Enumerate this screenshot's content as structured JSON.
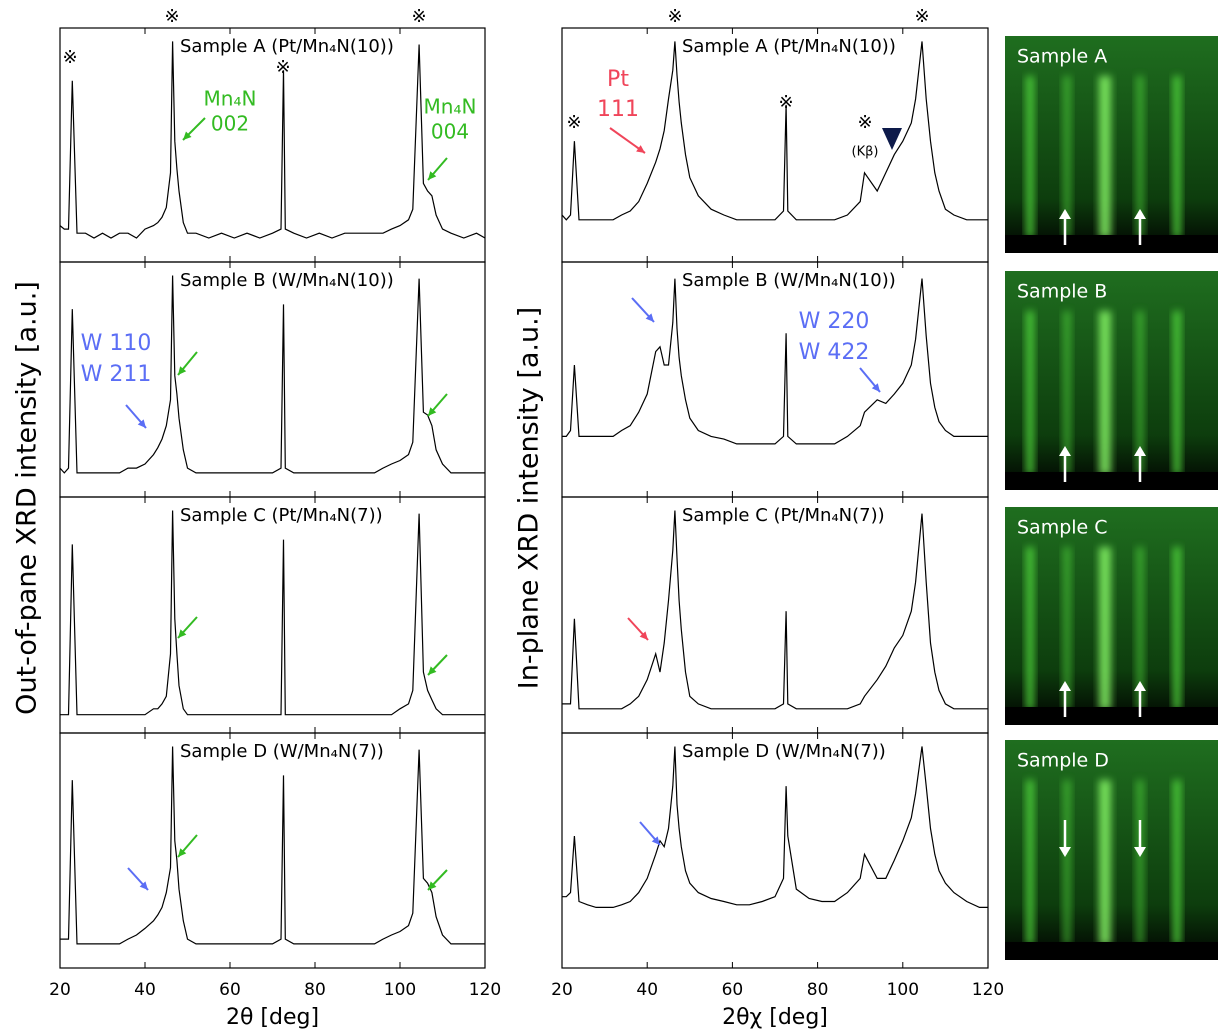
{
  "chart_data": [
    {
      "type": "line",
      "title": "Sample A (Pt/Mn₄N(10))",
      "ylabel": "Out-of-pane XRD intensity [a.u.]",
      "log_y": true,
      "color": "#000000",
      "xlim": [
        20,
        120
      ],
      "xticks": [
        20,
        40,
        60,
        80,
        100,
        120
      ],
      "ylim": [
        2,
        15000
      ],
      "x": [
        20,
        21,
        22,
        22.9,
        24,
        26,
        28,
        30,
        32,
        34,
        36,
        38,
        40,
        42,
        43,
        44,
        45,
        46,
        46.5,
        47,
        47.5,
        48,
        49,
        50,
        52,
        55,
        58,
        61,
        64,
        67,
        70,
        72,
        72.6,
        73,
        75,
        78,
        81,
        84,
        87,
        90,
        91,
        94,
        96,
        98,
        100,
        102,
        103,
        104.5,
        105.5,
        106.5,
        107.5,
        108.5,
        110,
        112,
        115,
        118,
        120
      ],
      "values": [
        8,
        7,
        7,
        2000,
        6,
        6,
        5,
        6,
        5,
        6,
        6,
        5,
        7,
        8,
        9,
        11,
        16,
        60,
        9000,
        200,
        70,
        30,
        9,
        6,
        6,
        5,
        6,
        5,
        6,
        5,
        6,
        7,
        3000,
        7,
        6,
        5,
        6,
        5,
        6,
        6,
        6,
        6,
        6,
        7,
        8,
        10,
        15,
        8000,
        40,
        30,
        25,
        12,
        7,
        6,
        5,
        6,
        5
      ],
      "annotations": [
        {
          "text": "※",
          "color": "#000000"
        },
        {
          "text": "※",
          "color": "#000000"
        },
        {
          "text": "※",
          "color": "#000000"
        },
        {
          "text": "※",
          "color": "#000000"
        },
        {
          "text": "Mn₄N",
          "color": "#33bb22"
        },
        {
          "text": "002",
          "color": "#33bb22"
        },
        {
          "text": "Mn₄N",
          "color": "#33bb22"
        },
        {
          "text": "004",
          "color": "#33bb22"
        }
      ]
    },
    {
      "type": "line",
      "title": "Sample B (W/Mn₄N(10))",
      "log_y": true,
      "color": "#000000",
      "xlim": [
        20,
        120
      ],
      "xticks": [
        20,
        40,
        60,
        80,
        100,
        120
      ],
      "ylim": [
        2,
        15000
      ],
      "x": [
        20,
        21,
        22,
        22.9,
        24,
        26,
        28,
        30,
        32,
        34,
        36,
        38,
        40,
        42,
        43,
        44,
        45,
        46,
        46.5,
        47,
        47.5,
        48,
        49,
        50,
        52,
        55,
        58,
        61,
        64,
        67,
        70,
        72,
        72.6,
        73,
        75,
        78,
        81,
        84,
        87,
        90,
        91,
        94,
        96,
        98,
        100,
        102,
        103,
        104.5,
        105.5,
        106.5,
        107.5,
        108.5,
        110,
        112,
        115,
        118,
        120
      ],
      "values": [
        6,
        5,
        6,
        2500,
        5,
        5,
        5,
        5,
        5,
        5,
        6,
        6,
        7,
        10,
        13,
        18,
        30,
        80,
        9000,
        200,
        100,
        40,
        12,
        6,
        5,
        5,
        5,
        5,
        5,
        5,
        5,
        6,
        3000,
        6,
        5,
        5,
        5,
        5,
        5,
        5,
        5,
        5,
        6,
        7,
        8,
        10,
        16,
        8000,
        50,
        45,
        30,
        12,
        7,
        5,
        5,
        5,
        5
      ],
      "annotations": [
        {
          "text": "W 110",
          "color": "#5b6ef5"
        },
        {
          "text": "W 211",
          "color": "#5b6ef5"
        }
      ]
    },
    {
      "type": "line",
      "title": "Sample C (Pt/Mn₄N(7))",
      "log_y": true,
      "color": "#000000",
      "xlim": [
        20,
        120
      ],
      "xticks": [
        20,
        40,
        60,
        80,
        100,
        120
      ],
      "ylim": [
        2,
        15000
      ],
      "x": [
        20,
        21,
        22,
        22.9,
        24,
        26,
        28,
        30,
        32,
        34,
        36,
        38,
        40,
        42,
        43,
        44,
        45,
        46,
        46.5,
        47,
        47.5,
        48,
        49,
        50,
        52,
        55,
        58,
        61,
        64,
        67,
        70,
        72,
        72.6,
        73,
        75,
        78,
        81,
        84,
        87,
        90,
        91,
        94,
        96,
        98,
        100,
        102,
        103,
        104.5,
        105.5,
        106.5,
        107.5,
        108.5,
        110,
        112,
        115,
        118,
        120
      ],
      "values": [
        4,
        4,
        4,
        2500,
        4,
        4,
        4,
        4,
        4,
        4,
        4,
        4,
        4,
        5,
        5,
        6,
        8,
        40,
        9000,
        150,
        40,
        12,
        5,
        4,
        4,
        4,
        4,
        4,
        4,
        4,
        4,
        4,
        3000,
        4,
        4,
        4,
        4,
        4,
        4,
        4,
        4,
        4,
        4,
        4,
        5,
        6,
        10,
        8000,
        20,
        10,
        7,
        5,
        4,
        4,
        4,
        4,
        4
      ],
      "annotations": []
    },
    {
      "type": "line",
      "title": "Sample D (W/Mn₄N(7))",
      "xlabel": "2θ [deg]",
      "log_y": true,
      "color": "#000000",
      "xlim": [
        20,
        120
      ],
      "xticks": [
        20,
        40,
        60,
        80,
        100,
        120
      ],
      "ylim": [
        2,
        15000
      ],
      "x": [
        20,
        21,
        22,
        22.9,
        24,
        26,
        28,
        30,
        32,
        34,
        36,
        38,
        40,
        42,
        43,
        44,
        45,
        46,
        46.5,
        47,
        47.5,
        48,
        49,
        50,
        52,
        55,
        58,
        61,
        64,
        67,
        70,
        72,
        72.6,
        73,
        75,
        78,
        81,
        84,
        87,
        90,
        91,
        94,
        96,
        98,
        100,
        102,
        103,
        104.5,
        105.5,
        106.5,
        107.5,
        108.5,
        110,
        112,
        115,
        118,
        120
      ],
      "values": [
        6,
        6,
        6,
        2500,
        5,
        5,
        5,
        5,
        5,
        5,
        6,
        7,
        9,
        12,
        15,
        20,
        35,
        90,
        9000,
        250,
        120,
        40,
        12,
        6,
        5,
        5,
        5,
        5,
        5,
        5,
        5,
        6,
        3000,
        6,
        5,
        5,
        5,
        5,
        5,
        5,
        5,
        5,
        6,
        7,
        8,
        10,
        16,
        8000,
        60,
        50,
        35,
        14,
        7,
        5,
        5,
        5,
        5
      ],
      "annotations": []
    },
    {
      "type": "line",
      "title": "Sample A (Pt/Mn₄N(10))",
      "ylabel": "In-plane XRD intensity [a.u.]",
      "log_y": true,
      "color": "#000000",
      "xlim": [
        20,
        120
      ],
      "xticks": [
        20,
        40,
        60,
        80,
        100,
        120
      ],
      "ylim": [
        2,
        15000
      ],
      "x": [
        20,
        21,
        22,
        22.9,
        24,
        26,
        28,
        30,
        32,
        34,
        36,
        38,
        40,
        42,
        43,
        44,
        45,
        46,
        46.5,
        47,
        47.5,
        48,
        49,
        50,
        52,
        55,
        58,
        61,
        64,
        67,
        70,
        72,
        72.6,
        73,
        75,
        78,
        81,
        84,
        87,
        90,
        91,
        94,
        96,
        98,
        100,
        102,
        103,
        104.5,
        105.5,
        106.5,
        107.5,
        108.5,
        110,
        112,
        115,
        118,
        120
      ],
      "values": [
        12,
        10,
        12,
        200,
        10,
        10,
        10,
        10,
        10,
        12,
        14,
        20,
        40,
        90,
        150,
        300,
        1000,
        3000,
        9000,
        2500,
        900,
        400,
        120,
        50,
        25,
        15,
        12,
        10,
        10,
        10,
        10,
        14,
        800,
        14,
        10,
        10,
        10,
        10,
        12,
        20,
        60,
        30,
        60,
        120,
        200,
        400,
        1000,
        9000,
        1000,
        200,
        60,
        30,
        15,
        12,
        10,
        10,
        10
      ],
      "annotations": [
        {
          "text": "※",
          "color": "#000000"
        },
        {
          "text": "※",
          "color": "#000000"
        },
        {
          "text": "※",
          "color": "#000000"
        },
        {
          "text": "※",
          "color": "#000000"
        },
        {
          "text": "※",
          "color": "#000000"
        },
        {
          "text": "(Kβ)",
          "color": "#000000"
        },
        {
          "text": "Pt",
          "color": "#f0455a"
        },
        {
          "text": "111",
          "color": "#f0455a"
        }
      ]
    },
    {
      "type": "line",
      "title": "Sample B (W/Mn₄N(10))",
      "log_y": true,
      "color": "#000000",
      "xlim": [
        20,
        120
      ],
      "xticks": [
        20,
        40,
        60,
        80,
        100,
        120
      ],
      "ylim": [
        2,
        15000
      ],
      "x": [
        20,
        21,
        22,
        22.9,
        24,
        26,
        28,
        30,
        32,
        34,
        36,
        38,
        40,
        42,
        43,
        44,
        45,
        46,
        46.5,
        47,
        47.5,
        48,
        49,
        50,
        52,
        55,
        58,
        61,
        64,
        67,
        70,
        72,
        72.6,
        73,
        75,
        78,
        81,
        84,
        87,
        90,
        91,
        94,
        96,
        98,
        100,
        102,
        103,
        104.5,
        105.5,
        106.5,
        107.5,
        108.5,
        110,
        112,
        115,
        118,
        120
      ],
      "values": [
        20,
        20,
        25,
        300,
        20,
        20,
        20,
        20,
        20,
        25,
        30,
        50,
        100,
        500,
        600,
        300,
        300,
        1500,
        8000,
        1200,
        400,
        200,
        80,
        40,
        25,
        20,
        18,
        15,
        15,
        15,
        15,
        20,
        1000,
        20,
        15,
        15,
        15,
        15,
        20,
        30,
        50,
        80,
        70,
        100,
        150,
        300,
        800,
        8000,
        900,
        150,
        60,
        35,
        25,
        20,
        20,
        20,
        20
      ],
      "annotations": [
        {
          "text": "W 220",
          "color": "#5b6ef5"
        },
        {
          "text": "W 422",
          "color": "#5b6ef5"
        }
      ]
    },
    {
      "type": "line",
      "title": "Sample C (Pt/Mn₄N(7))",
      "log_y": true,
      "color": "#000000",
      "xlim": [
        20,
        120
      ],
      "xticks": [
        20,
        40,
        60,
        80,
        100,
        120
      ],
      "ylim": [
        2,
        15000
      ],
      "x": [
        20,
        21,
        22,
        22.9,
        24,
        26,
        28,
        30,
        32,
        34,
        36,
        38,
        40,
        42,
        43,
        44,
        45,
        46,
        46.5,
        47,
        47.5,
        48,
        49,
        50,
        52,
        55,
        58,
        61,
        64,
        67,
        70,
        72,
        72.6,
        73,
        75,
        78,
        81,
        84,
        87,
        90,
        91,
        94,
        96,
        98,
        100,
        102,
        103,
        104.5,
        105.5,
        106.5,
        107.5,
        108.5,
        110,
        112,
        115,
        118,
        120
      ],
      "values": [
        6,
        6,
        6,
        150,
        5,
        5,
        5,
        5,
        5,
        5,
        6,
        8,
        15,
        40,
        20,
        60,
        300,
        2000,
        9000,
        1500,
        300,
        100,
        20,
        8,
        6,
        5,
        5,
        5,
        5,
        5,
        5,
        6,
        200,
        6,
        5,
        5,
        5,
        5,
        5,
        6,
        8,
        15,
        25,
        50,
        80,
        200,
        600,
        8000,
        600,
        60,
        20,
        10,
        6,
        5,
        5,
        5,
        5
      ],
      "annotations": []
    },
    {
      "type": "line",
      "title": "Sample D (W/Mn₄N(7))",
      "xlabel": "2θχ [deg]",
      "log_y": true,
      "color": "#000000",
      "xlim": [
        20,
        120
      ],
      "xticks": [
        20,
        40,
        60,
        80,
        100,
        120
      ],
      "ylim": [
        2,
        15000
      ],
      "x": [
        20,
        21,
        22,
        22.9,
        24,
        26,
        28,
        30,
        32,
        34,
        36,
        38,
        40,
        42,
        43,
        44,
        45,
        46,
        46.5,
        47,
        47.5,
        48,
        49,
        50,
        52,
        55,
        58,
        61,
        64,
        67,
        70,
        72,
        72.6,
        73,
        75,
        78,
        81,
        84,
        87,
        90,
        91,
        94,
        96,
        98,
        100,
        102,
        103,
        104.5,
        105.5,
        106.5,
        107.5,
        108.5,
        110,
        112,
        115,
        118,
        120
      ],
      "values": [
        30,
        30,
        35,
        300,
        25,
        22,
        20,
        20,
        20,
        22,
        25,
        35,
        60,
        150,
        250,
        200,
        400,
        2000,
        9000,
        1000,
        400,
        200,
        80,
        50,
        35,
        28,
        25,
        22,
        22,
        25,
        30,
        60,
        2000,
        300,
        40,
        28,
        25,
        25,
        35,
        60,
        150,
        60,
        60,
        120,
        250,
        600,
        1500,
        9000,
        2000,
        400,
        150,
        80,
        50,
        35,
        25,
        20,
        20
      ],
      "annotations": []
    }
  ],
  "images": [
    {
      "label": "Sample A"
    },
    {
      "label": "Sample B"
    },
    {
      "label": "Sample C"
    },
    {
      "label": "Sample D"
    }
  ]
}
